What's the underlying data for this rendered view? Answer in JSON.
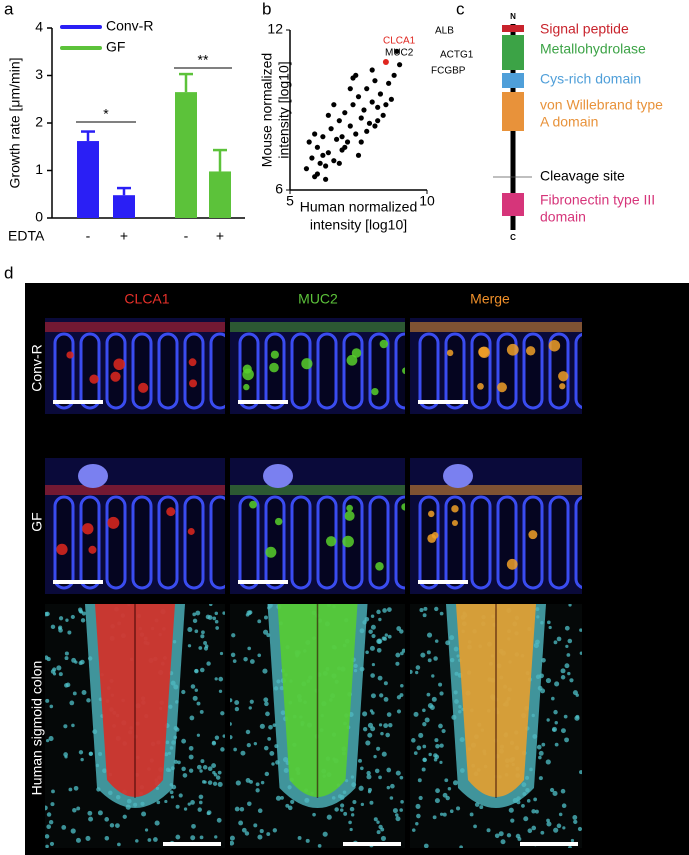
{
  "panel_labels": [
    "a",
    "b",
    "c",
    "d"
  ],
  "chart_data": [
    {
      "type": "bar",
      "y_label": "Growth rate [μm/min]",
      "x_label": "EDTA",
      "categories": [
        "-",
        "+",
        "-",
        "+"
      ],
      "series": [
        {
          "name": "Conv-R",
          "color": "#2a1ff5",
          "values": [
            1.62,
            0.48,
            null,
            null
          ],
          "errors": [
            0.2,
            0.15,
            null,
            null
          ]
        },
        {
          "name": "GF",
          "color": "#5cc23a",
          "values": [
            null,
            null,
            2.65,
            0.98
          ],
          "errors": [
            null,
            null,
            0.38,
            0.45
          ]
        }
      ],
      "significance": [
        "*",
        "**"
      ],
      "ylim": [
        0,
        4
      ],
      "yticks": [
        0,
        1,
        2,
        3,
        4
      ],
      "legend": "top-left"
    },
    {
      "type": "scatter",
      "x_label": [
        "Human normalized",
        "intensity [log10]"
      ],
      "y_label": [
        "Mouse normalized",
        "intensity [log10]"
      ],
      "color": "#000000",
      "x": [
        5.6,
        5.8,
        5.9,
        6.0,
        6.1,
        6.2,
        6.3,
        6.4,
        6.5,
        6.6,
        6.7,
        6.8,
        6.9,
        7.0,
        7.1,
        7.2,
        7.3,
        7.4,
        7.5,
        7.6,
        7.7,
        7.8,
        7.9,
        8.0,
        8.1,
        8.2,
        8.3,
        8.4,
        8.6,
        8.7,
        5.7,
        6.0,
        6.2,
        6.4,
        6.6,
        6.8,
        7.0,
        7.2,
        7.4,
        7.6,
        7.8,
        8.0,
        8.2,
        8.5,
        6.3,
        6.9,
        7.5,
        8.1,
        5.9,
        7.3,
        8.9,
        9.0,
        8.8
      ],
      "y": [
        6.8,
        7.2,
        6.5,
        7.6,
        7.0,
        8.0,
        6.9,
        7.4,
        8.3,
        7.1,
        7.9,
        8.6,
        7.5,
        8.9,
        7.8,
        8.4,
        9.2,
        8.1,
        9.5,
        8.7,
        9.0,
        9.8,
        8.5,
        9.3,
        10.1,
        9.1,
        9.6,
        8.8,
        10.0,
        9.4,
        7.8,
        6.6,
        7.3,
        8.8,
        9.2,
        7.0,
        7.6,
        9.8,
        10.3,
        7.8,
        8.2,
        10.5,
        8.6,
        9.2,
        6.4,
        8.0,
        7.3,
        8.4,
        8.1,
        10.2,
        11.2,
        10.7,
        10.3
      ],
      "highlight": {
        "x": [
          8.5
        ],
        "y": [
          10.8
        ],
        "color": "#e0261f"
      },
      "annotations": [
        {
          "text": "CLCA1",
          "color": "#e0261f"
        },
        {
          "text": "ALB",
          "color": "#000000"
        },
        {
          "text": "MUC2",
          "color": "#000000"
        },
        {
          "text": "ACTG1",
          "color": "#000000"
        },
        {
          "text": "FCGBP",
          "color": "#000000"
        }
      ],
      "xlim": [
        5,
        10
      ],
      "xticks": [
        5,
        10
      ],
      "ylim": [
        6,
        12
      ],
      "yticks": [
        6,
        12
      ]
    }
  ],
  "diagram": {
    "n_label": "N",
    "c_label": "C",
    "domains": [
      {
        "label": [
          "Signal peptide"
        ],
        "color": "#c8232c"
      },
      {
        "label": [
          "Metallohydrolase"
        ],
        "color": "#3ca346"
      },
      {
        "label": [
          "Cys-rich domain"
        ],
        "color": "#4f9fd9"
      },
      {
        "label": [
          "von Willebrand type",
          "A domain"
        ],
        "color": "#e8923a"
      },
      {
        "label": [
          "Cleavage site"
        ],
        "color": "#000000"
      },
      {
        "label": [
          "Fibronectin type III",
          "domain"
        ],
        "color": "#d6357a"
      }
    ]
  },
  "micrographs": {
    "columns": [
      {
        "label": "CLCA1",
        "color": "#e8312a"
      },
      {
        "label": "MUC2",
        "color": "#5cc23a"
      },
      {
        "label": "Merge",
        "color": "#f0902a"
      }
    ],
    "rows": [
      "Conv-R",
      "GF",
      "Human sigmoid colon"
    ]
  }
}
